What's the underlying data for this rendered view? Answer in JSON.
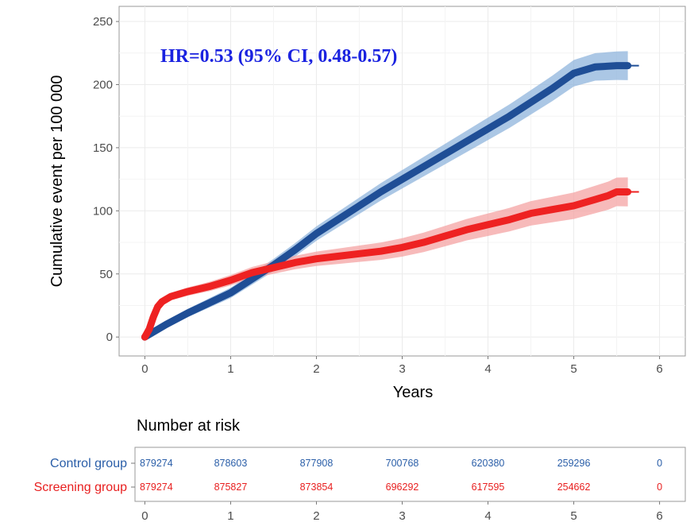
{
  "chart_data": {
    "type": "line",
    "annotation": "HR=0.53 (95% CI, 0.48-0.57)",
    "xlabel": "Years",
    "ylabel": "Cumulative event per 100 000",
    "xlim": [
      -0.3,
      6.3
    ],
    "ylim": [
      -15,
      262
    ],
    "x_ticks": [
      "0",
      "1",
      "2",
      "3",
      "4",
      "5",
      "6"
    ],
    "y_ticks": [
      "0",
      "50",
      "100",
      "150",
      "200",
      "250"
    ],
    "grid": true,
    "series": [
      {
        "name": "Control group",
        "color": "#1f4e96",
        "band_color": "#8fb4dc",
        "x": [
          0,
          0.25,
          0.5,
          0.75,
          1.0,
          1.25,
          1.5,
          1.75,
          2.0,
          2.25,
          2.5,
          2.75,
          3.0,
          3.25,
          3.5,
          3.75,
          4.0,
          4.25,
          4.5,
          4.75,
          5.0,
          5.25,
          5.5,
          5.63
        ],
        "y": [
          0,
          10,
          19,
          27,
          35,
          46,
          57,
          69,
          82,
          93,
          104,
          115,
          125,
          135,
          145,
          155,
          165,
          175,
          186,
          197,
          209,
          214,
          215,
          215
        ]
      },
      {
        "name": "Screening group",
        "color": "#ee2222",
        "band_color": "#f4a3a3",
        "x": [
          0,
          0.05,
          0.1,
          0.15,
          0.2,
          0.3,
          0.5,
          0.75,
          1.0,
          1.25,
          1.5,
          1.75,
          2.0,
          2.25,
          2.5,
          2.75,
          3.0,
          3.25,
          3.5,
          3.75,
          4.0,
          4.25,
          4.5,
          4.75,
          5.0,
          5.25,
          5.4,
          5.5,
          5.63
        ],
        "y": [
          0,
          6,
          16,
          24,
          28,
          32,
          36,
          40,
          45,
          51,
          55,
          59,
          62,
          64,
          66,
          68,
          71,
          75,
          80,
          85,
          89,
          93,
          98,
          101,
          104,
          109,
          112,
          115,
          115
        ]
      }
    ]
  },
  "risk_table": {
    "title": "Number at risk",
    "times": [
      "0",
      "1",
      "2",
      "3",
      "4",
      "5",
      "6"
    ],
    "rows": [
      {
        "label": "Control group",
        "color": "#2a5ea8",
        "values": [
          "879274",
          "878603",
          "877908",
          "700768",
          "620380",
          "259296",
          "0"
        ]
      },
      {
        "label": "Screening group",
        "color": "#e82020",
        "values": [
          "879274",
          "875827",
          "873854",
          "696292",
          "617595",
          "254662",
          "0"
        ]
      }
    ]
  }
}
